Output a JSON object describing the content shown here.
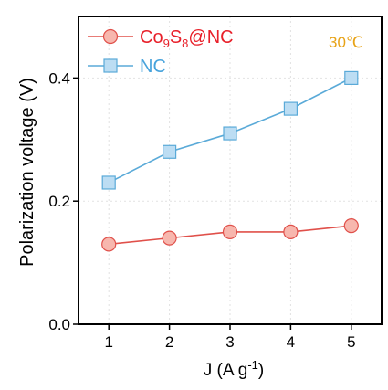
{
  "chart_data": {
    "type": "line",
    "x": [
      1,
      2,
      3,
      4,
      5
    ],
    "xlim": [
      0.5,
      5.5
    ],
    "ylim": [
      0.0,
      0.5
    ],
    "xticks": [
      1,
      2,
      3,
      4,
      5
    ],
    "yticks": [
      0.0,
      0.2,
      0.4
    ],
    "ytick_labels": [
      "0.0",
      "0.2",
      "0.4"
    ],
    "xlabel": {
      "main": "J (A g",
      "sup": "-1",
      "tail": ")"
    },
    "ylabel": "Polarization voltage (V)",
    "grid": true,
    "legend_position": "top-left",
    "annotation": {
      "text": "30℃",
      "color": "#E8A317"
    },
    "series": [
      {
        "id": "co9s8",
        "name_parts": [
          {
            "t": "Co",
            "sub": false
          },
          {
            "t": "9",
            "sub": true
          },
          {
            "t": "S",
            "sub": false
          },
          {
            "t": "8",
            "sub": true
          },
          {
            "t": "@NC",
            "sub": false
          }
        ],
        "marker": "circle",
        "color": "#E0504A",
        "fill": "#F7B7AE",
        "text_color": "#E8202A",
        "values": [
          0.13,
          0.14,
          0.15,
          0.15,
          0.16
        ]
      },
      {
        "id": "nc",
        "name_parts": [
          {
            "t": "NC",
            "sub": false
          }
        ],
        "marker": "square",
        "color": "#5AAAD8",
        "fill": "#BCDDF3",
        "text_color": "#47A3DC",
        "values": [
          0.23,
          0.28,
          0.31,
          0.35,
          0.4
        ]
      }
    ]
  }
}
